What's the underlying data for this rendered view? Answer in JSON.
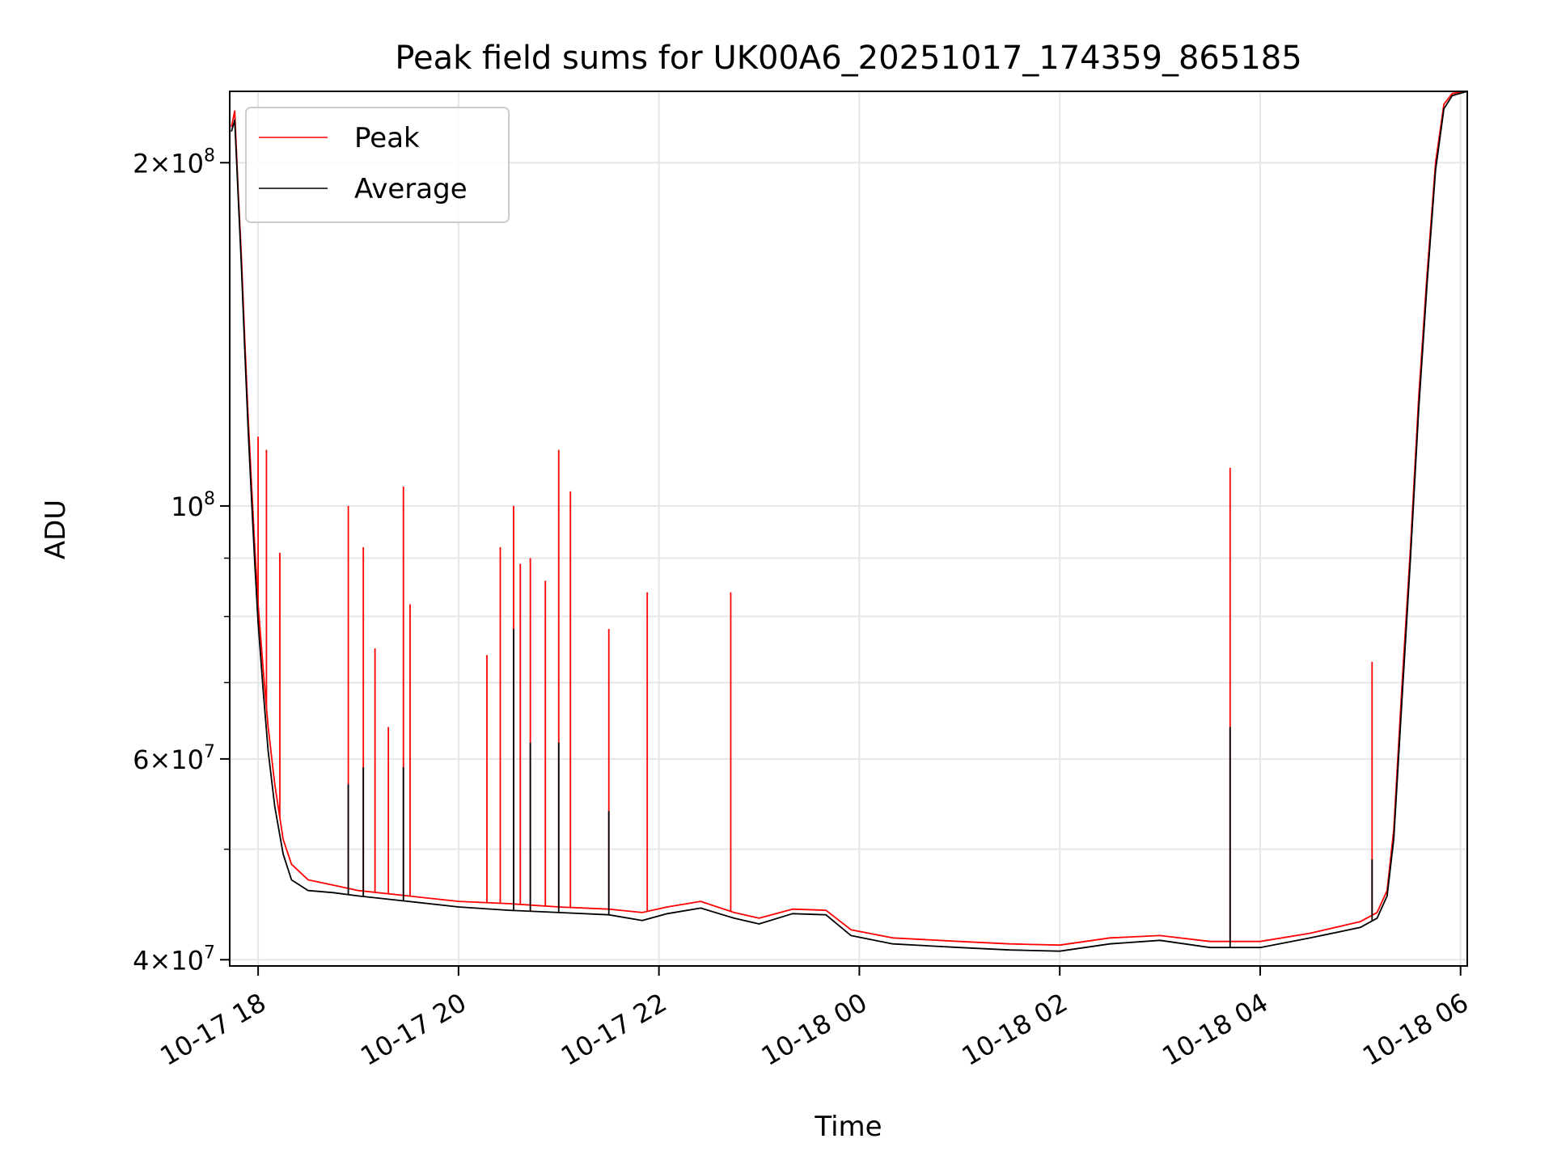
{
  "chart_data": {
    "type": "line",
    "title": "Peak field sums for UK00A6_20251017_174359_865185",
    "xlabel": "Time",
    "ylabel": "ADU",
    "yscale": "log",
    "xlim": [
      "2025-10-17T17:43",
      "2025-10-18T06:04"
    ],
    "ylim": [
      39500000,
      231000000
    ],
    "grid": true,
    "legend_position": "upper-left",
    "x_ticks": [
      {
        "t": "2025-10-17T18:00",
        "label": "10-17 18"
      },
      {
        "t": "2025-10-17T20:00",
        "label": "10-17 20"
      },
      {
        "t": "2025-10-17T22:00",
        "label": "10-17 22"
      },
      {
        "t": "2025-10-18T00:00",
        "label": "10-18 00"
      },
      {
        "t": "2025-10-18T02:00",
        "label": "10-18 02"
      },
      {
        "t": "2025-10-18T04:00",
        "label": "10-18 04"
      },
      {
        "t": "2025-10-18T06:00",
        "label": "10-18 06"
      }
    ],
    "y_ticks": [
      {
        "value": 40000000,
        "base": "4",
        "exp": "7"
      },
      {
        "value": 60000000,
        "base": "6",
        "exp": "7"
      },
      {
        "value": 100000000,
        "base": "",
        "exp": "8"
      },
      {
        "value": 200000000,
        "base": "2",
        "exp": "8"
      }
    ],
    "y_minor_ticks": [
      50000000,
      70000000,
      80000000,
      90000000
    ],
    "series": [
      {
        "name": "Peak",
        "color": "#ff0000",
        "points": [
          [
            "2025-10-17T17:44",
            215000000
          ],
          [
            "2025-10-17T17:46",
            222000000
          ],
          [
            "2025-10-17T17:48",
            190000000
          ],
          [
            "2025-10-17T17:50",
            165000000
          ],
          [
            "2025-10-17T17:52",
            140000000
          ],
          [
            "2025-10-17T17:54",
            120000000
          ],
          [
            "2025-10-17T17:56",
            105000000
          ],
          [
            "2025-10-17T17:58",
            92000000
          ],
          [
            "2025-10-17T18:00",
            82000000
          ],
          [
            "2025-10-17T18:03",
            72000000
          ],
          [
            "2025-10-17T18:06",
            64000000
          ],
          [
            "2025-10-17T18:10",
            57000000
          ],
          [
            "2025-10-17T18:15",
            51000000
          ],
          [
            "2025-10-17T18:20",
            48500000
          ],
          [
            "2025-10-17T18:30",
            47000000
          ],
          [
            "2025-10-17T18:45",
            46500000
          ],
          [
            "2025-10-17T19:00",
            46000000
          ],
          [
            "2025-10-17T19:30",
            45500000
          ],
          [
            "2025-10-17T20:00",
            45000000
          ],
          [
            "2025-10-17T20:30",
            44800000
          ],
          [
            "2025-10-17T21:00",
            44500000
          ],
          [
            "2025-10-17T21:30",
            44300000
          ],
          [
            "2025-10-17T21:50",
            44000000
          ],
          [
            "2025-10-17T22:05",
            44500000
          ],
          [
            "2025-10-17T22:25",
            45000000
          ],
          [
            "2025-10-17T22:45",
            44000000
          ],
          [
            "2025-10-17T23:00",
            43500000
          ],
          [
            "2025-10-17T23:20",
            44300000
          ],
          [
            "2025-10-17T23:40",
            44200000
          ],
          [
            "2025-10-17T23:55",
            42500000
          ],
          [
            "2025-10-18T00:20",
            41800000
          ],
          [
            "2025-10-18T01:00",
            41500000
          ],
          [
            "2025-10-18T01:30",
            41300000
          ],
          [
            "2025-10-18T02:00",
            41200000
          ],
          [
            "2025-10-18T02:30",
            41800000
          ],
          [
            "2025-10-18T03:00",
            42000000
          ],
          [
            "2025-10-18T03:30",
            41500000
          ],
          [
            "2025-10-18T04:00",
            41500000
          ],
          [
            "2025-10-18T04:30",
            42200000
          ],
          [
            "2025-10-18T05:00",
            43200000
          ],
          [
            "2025-10-18T05:10",
            44000000
          ],
          [
            "2025-10-18T05:16",
            46000000
          ],
          [
            "2025-10-18T05:20",
            52000000
          ],
          [
            "2025-10-18T05:25",
            70000000
          ],
          [
            "2025-10-18T05:30",
            92000000
          ],
          [
            "2025-10-18T05:35",
            125000000
          ],
          [
            "2025-10-18T05:40",
            160000000
          ],
          [
            "2025-10-18T05:45",
            200000000
          ],
          [
            "2025-10-18T05:50",
            225000000
          ],
          [
            "2025-10-18T05:55",
            230000000
          ],
          [
            "2025-10-18T06:04",
            231000000
          ]
        ],
        "spikes": [
          [
            "2025-10-17T18:00",
            115000000
          ],
          [
            "2025-10-17T18:05",
            112000000
          ],
          [
            "2025-10-17T18:13",
            91000000
          ],
          [
            "2025-10-17T18:54",
            100000000
          ],
          [
            "2025-10-17T19:03",
            92000000
          ],
          [
            "2025-10-17T19:10",
            75000000
          ],
          [
            "2025-10-17T19:18",
            64000000
          ],
          [
            "2025-10-17T19:27",
            104000000
          ],
          [
            "2025-10-17T19:31",
            82000000
          ],
          [
            "2025-10-17T20:17",
            74000000
          ],
          [
            "2025-10-17T20:25",
            92000000
          ],
          [
            "2025-10-17T20:33",
            100000000
          ],
          [
            "2025-10-17T20:37",
            89000000
          ],
          [
            "2025-10-17T20:43",
            90000000
          ],
          [
            "2025-10-17T20:52",
            86000000
          ],
          [
            "2025-10-17T21:00",
            112000000
          ],
          [
            "2025-10-17T21:07",
            103000000
          ],
          [
            "2025-10-17T21:30",
            78000000
          ],
          [
            "2025-10-17T21:53",
            84000000
          ],
          [
            "2025-10-17T22:43",
            84000000
          ],
          [
            "2025-10-18T03:42",
            108000000
          ],
          [
            "2025-10-18T05:07",
            73000000
          ]
        ]
      },
      {
        "name": "Average",
        "color": "#000000",
        "points": [
          [
            "2025-10-17T17:44",
            213000000
          ],
          [
            "2025-10-17T17:46",
            218000000
          ],
          [
            "2025-10-17T17:48",
            188000000
          ],
          [
            "2025-10-17T17:50",
            162000000
          ],
          [
            "2025-10-17T17:52",
            137000000
          ],
          [
            "2025-10-17T17:54",
            117000000
          ],
          [
            "2025-10-17T17:56",
            102000000
          ],
          [
            "2025-10-17T17:58",
            89000000
          ],
          [
            "2025-10-17T18:00",
            79000000
          ],
          [
            "2025-10-17T18:03",
            69000000
          ],
          [
            "2025-10-17T18:06",
            61000000
          ],
          [
            "2025-10-17T18:10",
            54500000
          ],
          [
            "2025-10-17T18:15",
            49500000
          ],
          [
            "2025-10-17T18:20",
            47000000
          ],
          [
            "2025-10-17T18:30",
            46000000
          ],
          [
            "2025-10-17T18:45",
            45800000
          ],
          [
            "2025-10-17T19:00",
            45500000
          ],
          [
            "2025-10-17T19:30",
            45000000
          ],
          [
            "2025-10-17T20:00",
            44500000
          ],
          [
            "2025-10-17T20:30",
            44200000
          ],
          [
            "2025-10-17T21:00",
            44000000
          ],
          [
            "2025-10-17T21:30",
            43800000
          ],
          [
            "2025-10-17T21:50",
            43300000
          ],
          [
            "2025-10-17T22:05",
            43900000
          ],
          [
            "2025-10-17T22:25",
            44400000
          ],
          [
            "2025-10-17T22:45",
            43500000
          ],
          [
            "2025-10-17T23:00",
            43000000
          ],
          [
            "2025-10-17T23:20",
            43900000
          ],
          [
            "2025-10-17T23:40",
            43800000
          ],
          [
            "2025-10-17T23:55",
            42000000
          ],
          [
            "2025-10-18T00:20",
            41300000
          ],
          [
            "2025-10-18T01:00",
            41000000
          ],
          [
            "2025-10-18T01:30",
            40800000
          ],
          [
            "2025-10-18T02:00",
            40700000
          ],
          [
            "2025-10-18T02:30",
            41300000
          ],
          [
            "2025-10-18T03:00",
            41600000
          ],
          [
            "2025-10-18T03:30",
            41000000
          ],
          [
            "2025-10-18T04:00",
            41000000
          ],
          [
            "2025-10-18T04:30",
            41800000
          ],
          [
            "2025-10-18T05:00",
            42700000
          ],
          [
            "2025-10-18T05:10",
            43500000
          ],
          [
            "2025-10-18T05:16",
            45500000
          ],
          [
            "2025-10-18T05:20",
            51000000
          ],
          [
            "2025-10-18T05:25",
            68000000
          ],
          [
            "2025-10-18T05:30",
            90000000
          ],
          [
            "2025-10-18T05:35",
            122000000
          ],
          [
            "2025-10-18T05:40",
            157000000
          ],
          [
            "2025-10-18T05:45",
            197000000
          ],
          [
            "2025-10-18T05:50",
            223000000
          ],
          [
            "2025-10-18T05:55",
            229000000
          ],
          [
            "2025-10-18T06:04",
            231000000
          ]
        ],
        "spikes": [
          [
            "2025-10-17T18:54",
            57000000
          ],
          [
            "2025-10-17T19:03",
            59000000
          ],
          [
            "2025-10-17T19:27",
            59000000
          ],
          [
            "2025-10-17T20:33",
            78000000
          ],
          [
            "2025-10-17T20:43",
            62000000
          ],
          [
            "2025-10-17T21:00",
            62000000
          ],
          [
            "2025-10-17T21:30",
            54000000
          ],
          [
            "2025-10-18T03:42",
            64000000
          ],
          [
            "2025-10-18T05:07",
            49000000
          ]
        ]
      }
    ]
  }
}
